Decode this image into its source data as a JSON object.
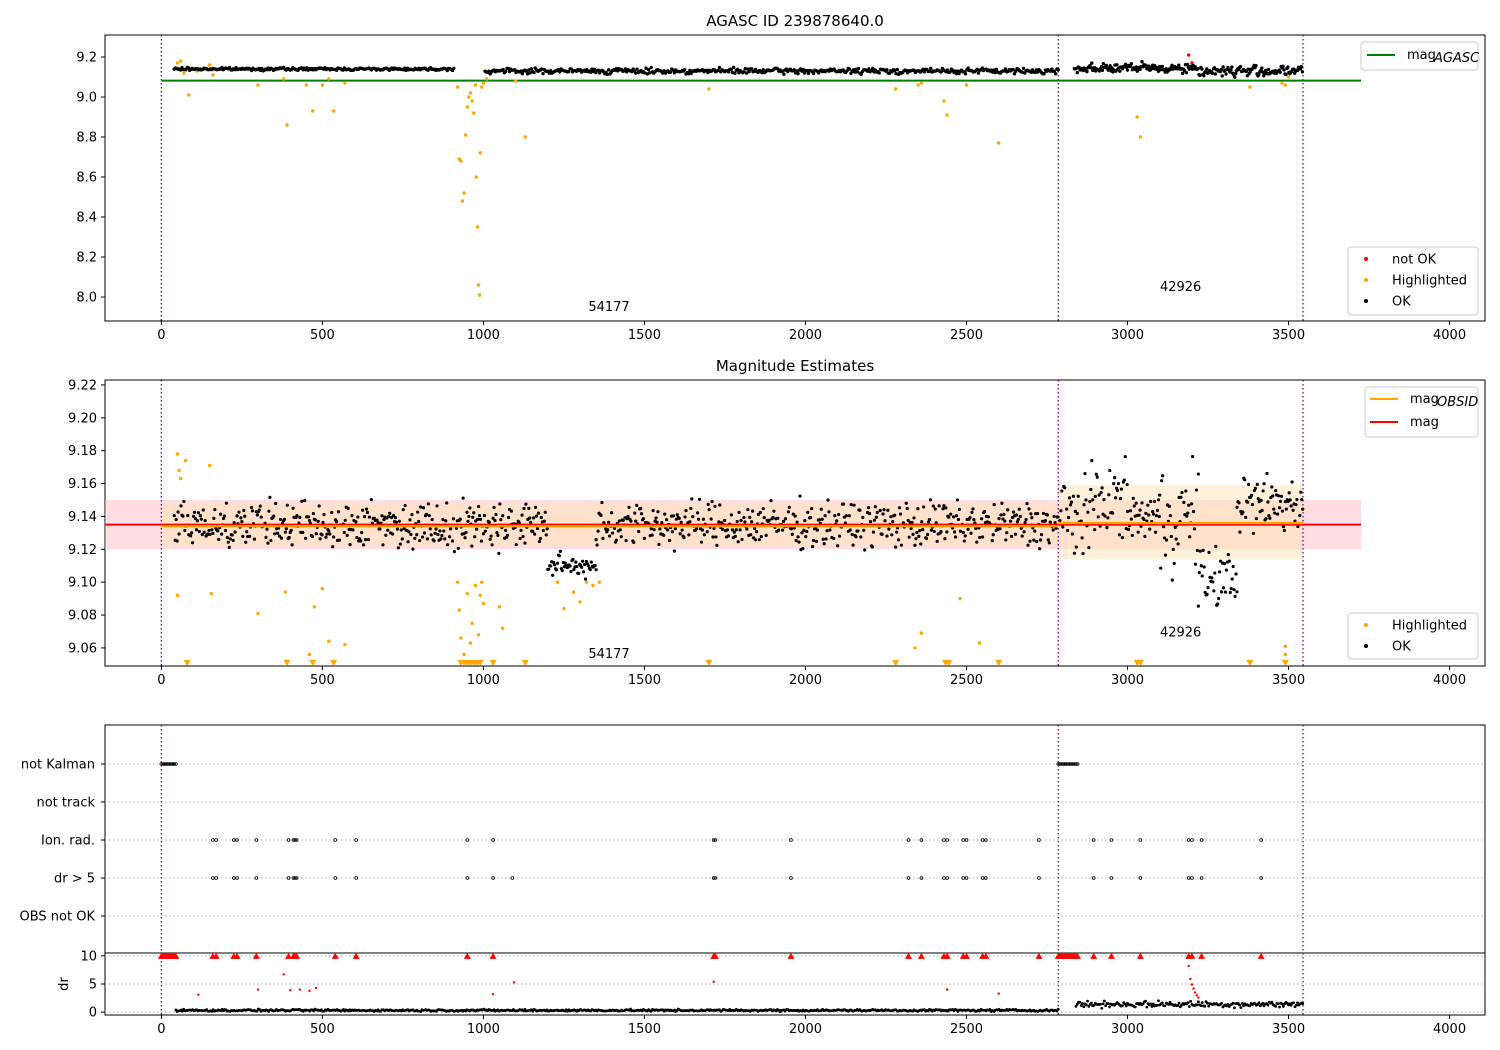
{
  "colors": {
    "ok": "#000000",
    "not_ok": "#ff0000",
    "highlighted": "#ffa500",
    "mag_agasc": "#008000",
    "mag": "#ff0000",
    "mag_obsid": "#ffa500",
    "obs_boundary": "#800080",
    "mag_band": "#ffb6c1",
    "obsid_band": "#ffe4b5"
  },
  "chart_data": [
    {
      "type": "scatter",
      "title": "AGASC ID 239878640.0",
      "xlabel": "",
      "ylabel": "",
      "xlim": [
        -175,
        4110
      ],
      "ylim": [
        7.88,
        9.31
      ],
      "x_ticks": [
        "0",
        "500",
        "1000",
        "1500",
        "2000",
        "2500",
        "3000",
        "3500",
        "4000"
      ],
      "y_ticks": [
        "8.0",
        "8.2",
        "8.4",
        "8.6",
        "8.8",
        "9.0",
        "9.2"
      ],
      "observation_boundaries": [
        0,
        2785,
        3545
      ],
      "annotations": [
        {
          "text": "54177",
          "x": 1390,
          "y": 7.93
        },
        {
          "text": "42926",
          "x": 3165,
          "y": 8.03
        }
      ],
      "lines": [
        {
          "name": "mag",
          "name_sub": "AGASC",
          "y": 9.082,
          "x": [
            0,
            3725
          ]
        }
      ],
      "series": [
        {
          "name": "not OK",
          "points": [
            [
              3190,
              9.21
            ],
            [
              3200,
              9.17
            ]
          ]
        },
        {
          "name": "Highlighted",
          "points": [
            [
              50,
              9.17
            ],
            [
              60,
              9.18
            ],
            [
              70,
              9.12
            ],
            [
              80,
              9.15
            ],
            [
              85,
              9.01
            ],
            [
              110,
              9.13
            ],
            [
              150,
              9.16
            ],
            [
              160,
              9.11
            ],
            [
              300,
              9.06
            ],
            [
              380,
              9.09
            ],
            [
              390,
              8.86
            ],
            [
              450,
              9.06
            ],
            [
              470,
              8.93
            ],
            [
              500,
              9.06
            ],
            [
              520,
              9.09
            ],
            [
              535,
              8.93
            ],
            [
              570,
              9.07
            ],
            [
              920,
              9.05
            ],
            [
              925,
              8.69
            ],
            [
              930,
              8.68
            ],
            [
              935,
              8.48
            ],
            [
              940,
              8.52
            ],
            [
              945,
              8.81
            ],
            [
              950,
              8.95
            ],
            [
              955,
              9.0
            ],
            [
              960,
              9.02
            ],
            [
              965,
              8.98
            ],
            [
              970,
              8.92
            ],
            [
              975,
              9.06
            ],
            [
              978,
              8.6
            ],
            [
              982,
              8.35
            ],
            [
              985,
              8.06
            ],
            [
              988,
              8.01
            ],
            [
              990,
              8.72
            ],
            [
              995,
              9.05
            ],
            [
              1000,
              9.07
            ],
            [
              1010,
              9.09
            ],
            [
              1100,
              9.08
            ],
            [
              1130,
              8.8
            ],
            [
              1700,
              9.04
            ],
            [
              2280,
              9.04
            ],
            [
              2350,
              9.06
            ],
            [
              2360,
              9.07
            ],
            [
              2430,
              8.98
            ],
            [
              2440,
              8.91
            ],
            [
              2500,
              9.06
            ],
            [
              2600,
              8.77
            ],
            [
              3030,
              8.9
            ],
            [
              3040,
              8.8
            ],
            [
              3380,
              9.05
            ],
            [
              3480,
              9.07
            ],
            [
              3490,
              9.06
            ],
            [
              3500,
              9.1
            ]
          ]
        },
        {
          "name": "OK",
          "segments": [
            {
              "x": [
                40,
                910
              ],
              "y": [
                9.13,
                9.15
              ],
              "step": 4
            },
            {
              "x": [
                1005,
                2785
              ],
              "y": [
                9.11,
                9.15
              ],
              "step": 4
            },
            {
              "x": [
                2835,
                3210
              ],
              "y": [
                9.11,
                9.18
              ],
              "step": 3
            },
            {
              "x": [
                3210,
                3545
              ],
              "y": [
                9.09,
                9.17
              ],
              "step": 3
            }
          ]
        }
      ],
      "legends": [
        {
          "position": "upper-right",
          "entries": [
            "mag"
          ]
        },
        {
          "position": "lower-right",
          "entries": [
            "not OK",
            "Highlighted",
            "OK"
          ]
        }
      ]
    },
    {
      "type": "scatter",
      "title": "Magnitude Estimates",
      "xlabel": "",
      "ylabel": "",
      "xlim": [
        -175,
        4110
      ],
      "ylim": [
        9.049,
        9.223
      ],
      "x_ticks": [
        "0",
        "500",
        "1000",
        "1500",
        "2000",
        "2500",
        "3000",
        "3500",
        "4000"
      ],
      "y_ticks": [
        "9.06",
        "9.08",
        "9.10",
        "9.12",
        "9.14",
        "9.16",
        "9.18",
        "9.20",
        "9.22"
      ],
      "observation_boundaries": [
        0,
        2785,
        3545
      ],
      "annotations": [
        {
          "text": "54177",
          "x": 1390,
          "y": 9.054
        },
        {
          "text": "42926",
          "x": 3165,
          "y": 9.067
        }
      ],
      "bands": [
        {
          "name": "mag",
          "x": [
            -175,
            3725
          ],
          "y": [
            9.12,
            9.15
          ]
        },
        {
          "name": "mag_OBSID_1",
          "x": [
            0,
            2785
          ],
          "y": [
            9.122,
            9.148
          ]
        },
        {
          "name": "mag_OBSID_2",
          "x": [
            2785,
            3545
          ],
          "y": [
            9.114,
            9.159
          ]
        }
      ],
      "lines": [
        {
          "name": "mag",
          "y": 9.135,
          "x": [
            -175,
            3725
          ]
        },
        {
          "name": "mag",
          "name_sub": "OBSID",
          "segments": [
            {
              "x": [
                0,
                2785
              ],
              "y": 9.134
            },
            {
              "x": [
                2785,
                3545
              ],
              "y": 9.136
            }
          ]
        }
      ],
      "series": [
        {
          "name": "Highlighted",
          "points": [
            [
              50,
              9.178
            ],
            [
              55,
              9.168
            ],
            [
              60,
              9.163
            ],
            [
              75,
              9.174
            ],
            [
              50,
              9.092
            ],
            [
              150,
              9.171
            ],
            [
              155,
              9.093
            ],
            [
              300,
              9.081
            ],
            [
              385,
              9.094
            ],
            [
              460,
              9.056
            ],
            [
              475,
              9.085
            ],
            [
              500,
              9.096
            ],
            [
              520,
              9.064
            ],
            [
              570,
              9.062
            ],
            [
              920,
              9.1
            ],
            [
              925,
              9.083
            ],
            [
              930,
              9.066
            ],
            [
              940,
              9.056
            ],
            [
              950,
              9.093
            ],
            [
              960,
              9.063
            ],
            [
              965,
              9.075
            ],
            [
              975,
              9.098
            ],
            [
              985,
              9.068
            ],
            [
              990,
              9.092
            ],
            [
              995,
              9.1
            ],
            [
              1000,
              9.087
            ],
            [
              1050,
              9.085
            ],
            [
              1060,
              9.072
            ],
            [
              1230,
              9.1
            ],
            [
              1250,
              9.084
            ],
            [
              1280,
              9.094
            ],
            [
              1300,
              9.088
            ],
            [
              1320,
              9.1
            ],
            [
              1340,
              9.098
            ],
            [
              1360,
              9.1
            ],
            [
              2360,
              9.069
            ],
            [
              2340,
              9.06
            ],
            [
              2480,
              9.09
            ],
            [
              2540,
              9.063
            ],
            [
              3490,
              9.061
            ],
            [
              3490,
              9.056
            ]
          ]
        },
        {
          "name": "Highlighted",
          "marker": "triangle-down",
          "x": [
            80,
            390,
            470,
            535,
            930,
            940,
            950,
            960,
            970,
            980,
            990,
            1030,
            1130,
            1700,
            2280,
            2435,
            2445,
            2600,
            3030,
            3040,
            3380,
            3490
          ]
        },
        {
          "name": "OK",
          "segments": [
            {
              "x": [
                40,
                1200
              ],
              "y": [
                9.115,
                9.155
              ],
              "step": 3
            },
            {
              "x": [
                1200,
                1350
              ],
              "y": [
                9.1,
                9.12
              ],
              "step": 3
            },
            {
              "x": [
                1350,
                2785
              ],
              "y": [
                9.115,
                9.155
              ],
              "step": 3
            },
            {
              "x": [
                2790,
                2900
              ],
              "y": [
                9.1,
                9.18
              ],
              "step": 3
            },
            {
              "x": [
                2900,
                3000
              ],
              "y": [
                9.12,
                9.18
              ],
              "step": 3
            },
            {
              "x": [
                3000,
                3100
              ],
              "y": [
                9.12,
                9.16
              ],
              "step": 3
            },
            {
              "x": [
                3100,
                3220
              ],
              "y": [
                9.09,
                9.19
              ],
              "step": 3
            },
            {
              "x": [
                3220,
                3340
              ],
              "y": [
                9.075,
                9.13
              ],
              "step": 3
            },
            {
              "x": [
                3340,
                3545
              ],
              "y": [
                9.12,
                9.175
              ],
              "step": 3
            }
          ]
        }
      ],
      "legends": [
        {
          "position": "upper-right",
          "entries": [
            "mag_OBSID",
            "mag"
          ]
        },
        {
          "position": "lower-right",
          "entries": [
            "Highlighted",
            "OK"
          ]
        }
      ]
    },
    {
      "type": "scatter",
      "title": "",
      "xlabel": "",
      "ylabel": "",
      "xlim": [
        -175,
        4110
      ],
      "categories": [
        "not Kalman",
        "not track",
        "Ion. rad.",
        "dr > 5",
        "OBS not OK"
      ],
      "grid": true,
      "observation_boundaries": [
        0,
        2785,
        3545
      ],
      "flags": {
        "not Kalman": [
          0,
          5,
          10,
          15,
          20,
          25,
          30,
          35,
          40,
          45,
          2785,
          2790,
          2795,
          2800,
          2805,
          2810,
          2815,
          2820,
          2825,
          2830,
          2835,
          2840,
          2845
        ],
        "not track": [],
        "Ion. rad.": [
          160,
          170,
          225,
          235,
          295,
          395,
          410,
          415,
          420,
          540,
          605,
          950,
          1030,
          1715,
          1720,
          1955,
          2320,
          2360,
          2430,
          2440,
          2490,
          2500,
          2550,
          2560,
          2725,
          2895,
          2950,
          3040,
          3190,
          3200,
          3230,
          3415
        ],
        "dr > 5": [
          160,
          170,
          225,
          235,
          295,
          395,
          410,
          415,
          420,
          540,
          605,
          950,
          1030,
          1090,
          1715,
          1720,
          1955,
          2320,
          2360,
          2430,
          2440,
          2490,
          2500,
          2550,
          2560,
          2725,
          2895,
          2950,
          3040,
          3190,
          3200,
          3230,
          3415
        ],
        "OBS not OK": []
      }
    },
    {
      "type": "scatter",
      "title": "",
      "xlabel": "",
      "ylabel": "dr",
      "xlim": [
        -175,
        4110
      ],
      "ylim": [
        -0.5,
        10.5
      ],
      "x_ticks": [
        "0",
        "500",
        "1000",
        "1500",
        "2000",
        "2500",
        "3000",
        "3500",
        "4000"
      ],
      "y_ticks": [
        "0",
        "5",
        "10"
      ],
      "grid": true,
      "observation_boundaries": [
        0,
        2785,
        3545
      ],
      "series": [
        {
          "name": "OK",
          "segments": [
            {
              "x": [
                45,
                2785
              ],
              "y": [
                0.05,
                0.6
              ],
              "step": 4
            },
            {
              "x": [
                2840,
                3545
              ],
              "y": [
                0.6,
                2.2
              ],
              "step": 4
            }
          ]
        },
        {
          "name": "not OK",
          "points": [
            [
              115,
              3.1
            ],
            [
              300,
              4.0
            ],
            [
              380,
              6.7
            ],
            [
              400,
              3.9
            ],
            [
              430,
              4.0
            ],
            [
              460,
              3.8
            ],
            [
              480,
              4.3
            ],
            [
              1030,
              3.2
            ],
            [
              1095,
              5.3
            ],
            [
              1715,
              5.4
            ],
            [
              2440,
              4.0
            ],
            [
              2600,
              3.3
            ],
            [
              3190,
              8.2
            ],
            [
              3195,
              5.9
            ],
            [
              3200,
              4.9
            ],
            [
              3205,
              4.2
            ],
            [
              3210,
              3.5
            ],
            [
              3215,
              3.0
            ],
            [
              3220,
              2.6
            ]
          ]
        },
        {
          "name": "not OK",
          "marker": "triangle-up",
          "x": [
            0,
            5,
            10,
            15,
            20,
            25,
            30,
            35,
            40,
            45,
            160,
            170,
            225,
            235,
            295,
            395,
            410,
            415,
            420,
            540,
            605,
            950,
            1030,
            1715,
            1720,
            1955,
            2320,
            2360,
            2430,
            2440,
            2490,
            2500,
            2550,
            2560,
            2725,
            2785,
            2790,
            2795,
            2800,
            2805,
            2810,
            2815,
            2820,
            2825,
            2830,
            2835,
            2840,
            2845,
            2895,
            2950,
            3040,
            3190,
            3200,
            3230,
            3415
          ]
        }
      ]
    }
  ]
}
